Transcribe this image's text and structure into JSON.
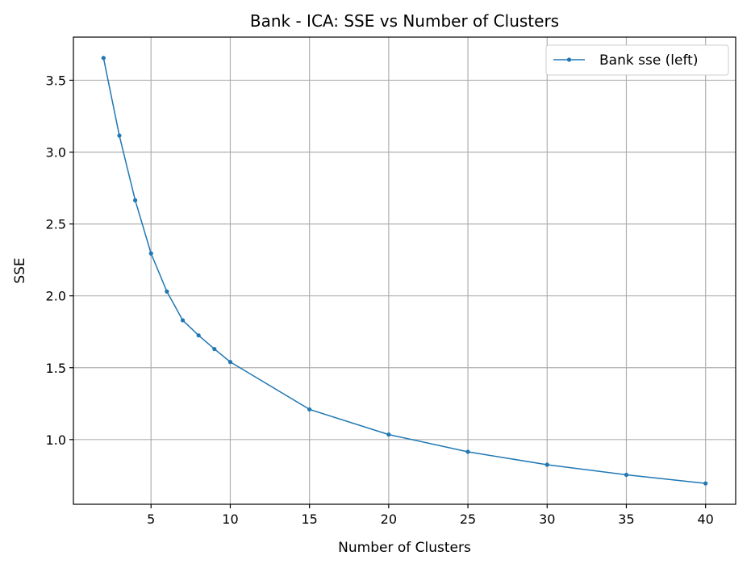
{
  "chart_data": {
    "type": "line",
    "title": "Bank - ICA: SSE vs Number of Clusters",
    "xlabel": "Number of Clusters",
    "ylabel": "SSE",
    "xlim": [
      0.1,
      41.9
    ],
    "ylim": [
      0.55,
      3.8
    ],
    "xticks": [
      5,
      10,
      15,
      20,
      25,
      30,
      35,
      40
    ],
    "yticks": [
      1.0,
      1.5,
      2.0,
      2.5,
      3.0,
      3.5
    ],
    "xtick_labels": [
      "5",
      "10",
      "15",
      "20",
      "25",
      "30",
      "35",
      "40"
    ],
    "ytick_labels": [
      "1.0",
      "1.5",
      "2.0",
      "2.5",
      "3.0",
      "3.5"
    ],
    "grid": true,
    "legend_position": "top-right",
    "series": [
      {
        "name": "Bank sse (left)",
        "color": "#1f77b4",
        "x": [
          2,
          3,
          4,
          5,
          6,
          7,
          8,
          9,
          10,
          15,
          20,
          25,
          30,
          35,
          40
        ],
        "y": [
          3.655,
          3.115,
          2.665,
          2.295,
          2.03,
          1.83,
          1.725,
          1.63,
          1.54,
          1.21,
          1.035,
          0.915,
          0.825,
          0.755,
          0.695
        ]
      }
    ]
  }
}
